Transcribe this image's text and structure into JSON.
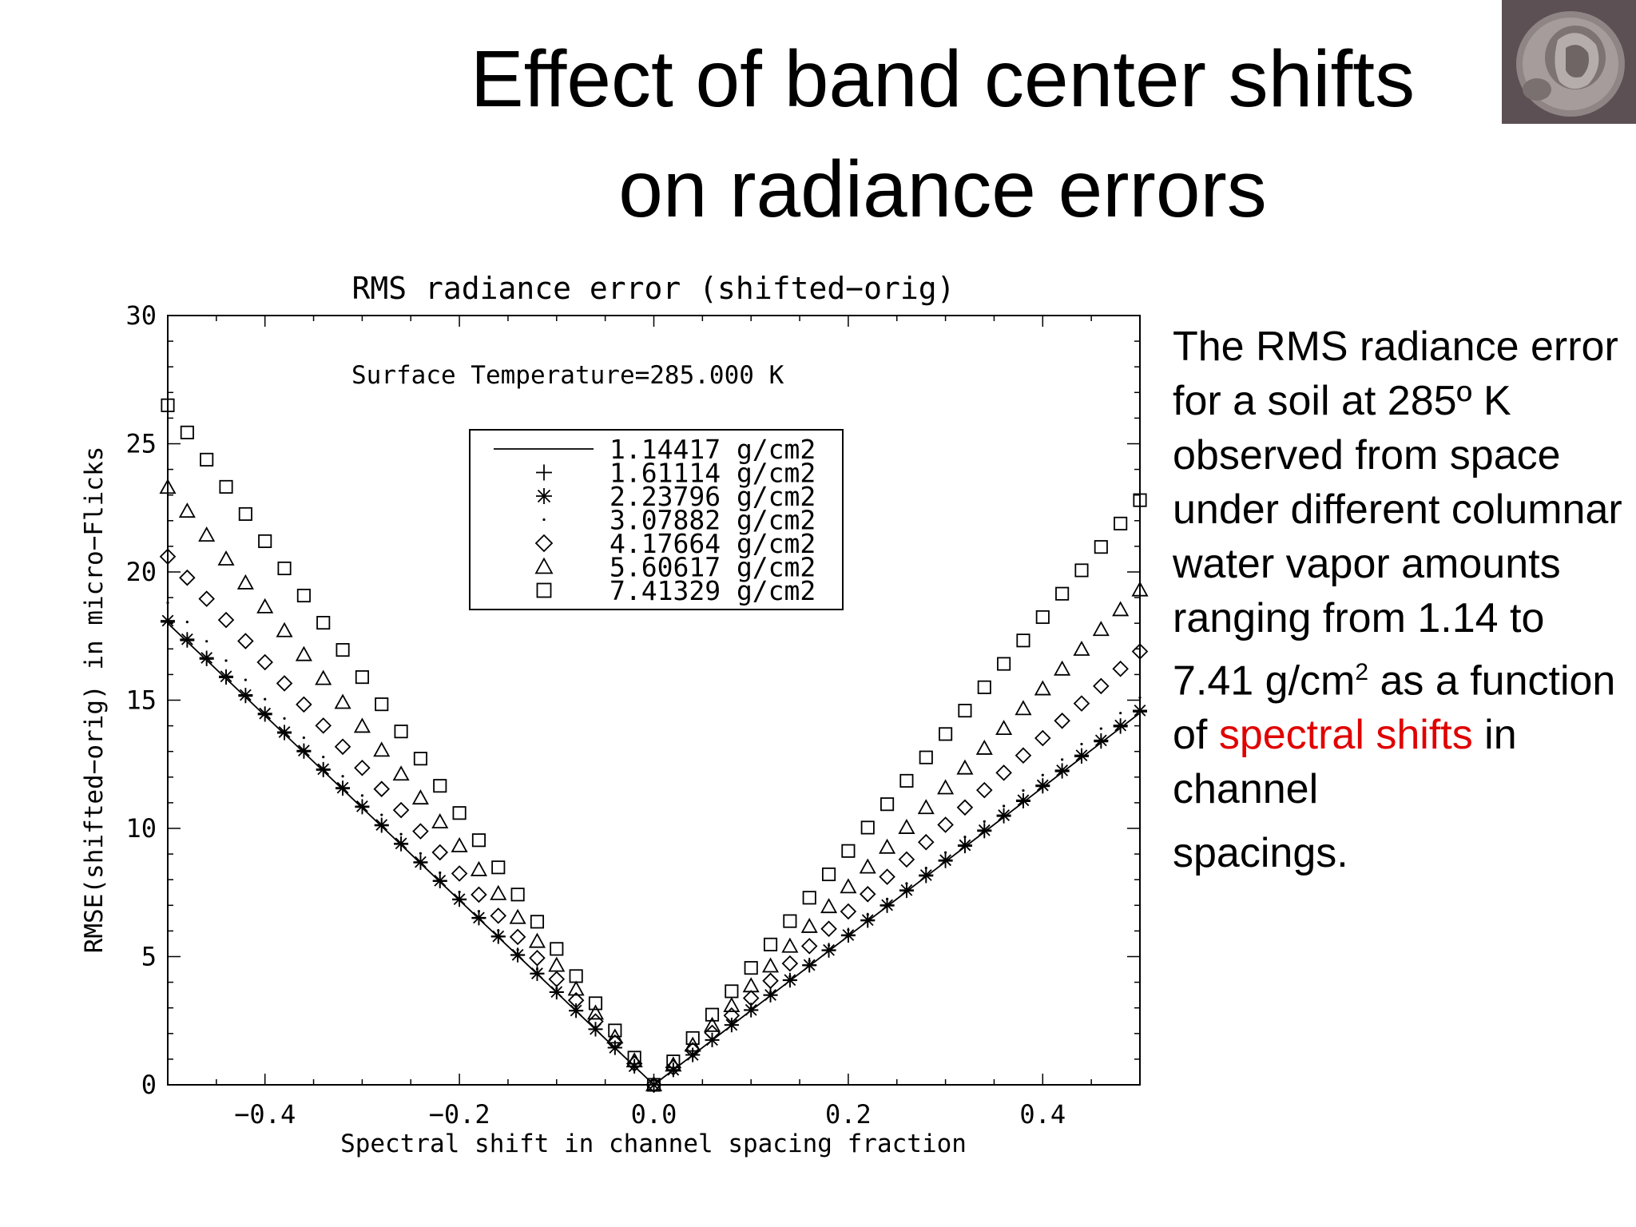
{
  "slide": {
    "title_line1": "Effect of band center shifts",
    "title_line2": "on radiance errors",
    "description": {
      "part1": "The RMS radiance error for a soil at 285º K observed from space under different columnar water vapor amounts ranging from 1.14 to 7.41 g/cm",
      "superscript": "2",
      "part2": " as a function of ",
      "highlight": "spectral shifts",
      "part3": " in channel",
      "part4": "spacings.",
      "highlight_color": "#e00000"
    },
    "logo_icon": "coin-icon"
  },
  "chart_data": {
    "type": "scatter",
    "title": "RMS radiance error (shifted−orig)",
    "annotation": "Surface Temperature=285.000 K",
    "xlabel": "Spectral shift in channel spacing fraction",
    "ylabel": "RMSE(shifted−orig) in micro−Flicks",
    "xlim": [
      -0.5,
      0.5
    ],
    "ylim": [
      0,
      30
    ],
    "xticks": [
      -0.4,
      -0.2,
      0.0,
      0.2,
      0.4
    ],
    "xtick_labels": [
      "−0.4",
      "−0.2",
      "0.0",
      "0.2",
      "0.4"
    ],
    "yticks": [
      0,
      5,
      10,
      15,
      20,
      25,
      30
    ],
    "ytick_labels": [
      "0",
      "5",
      "10",
      "15",
      "20",
      "25",
      "30"
    ],
    "grid": false,
    "legend_position": "top-center",
    "x_step": 0.02,
    "series": [
      {
        "name": "1.14417 g/cm2",
        "marker": "line",
        "neg_slope": 36.0,
        "pos_slope": 29.0
      },
      {
        "name": "1.61114 g/cm2",
        "marker": "plus",
        "neg_slope": 36.1,
        "pos_slope": 29.1
      },
      {
        "name": "2.23796 g/cm2",
        "marker": "asterisk",
        "neg_slope": 36.2,
        "pos_slope": 29.2
      },
      {
        "name": "3.07882 g/cm2",
        "marker": "dot",
        "neg_slope": 37.6,
        "pos_slope": 30.2
      },
      {
        "name": "4.17664 g/cm2",
        "marker": "diamond",
        "neg_slope": 41.2,
        "pos_slope": 33.8
      },
      {
        "name": "5.60617 g/cm2",
        "marker": "triangle",
        "neg_slope": 46.6,
        "pos_slope": 38.6
      },
      {
        "name": "7.41329 g/cm2",
        "marker": "square",
        "neg_slope": 53.0,
        "pos_slope": 45.6
      }
    ]
  }
}
